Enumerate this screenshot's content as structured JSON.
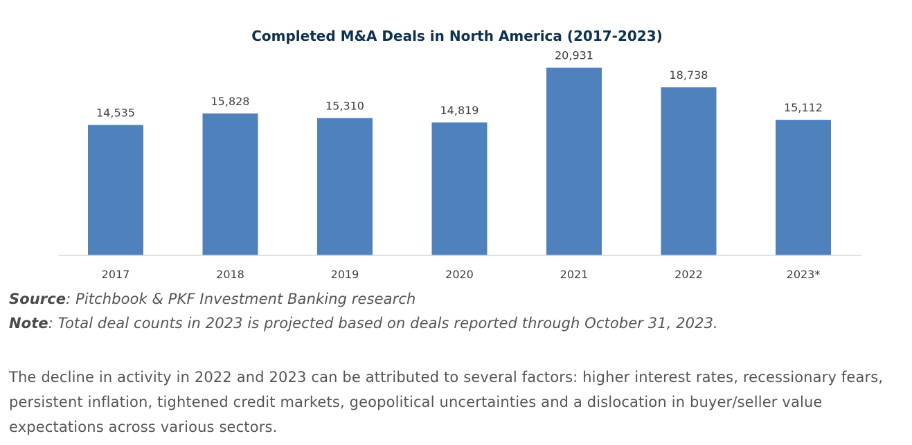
{
  "chart_data": {
    "type": "bar",
    "title": "Completed M&A Deals in North America (2017-2023)",
    "xlabel": "",
    "ylabel": "",
    "categories": [
      "2017",
      "2018",
      "2019",
      "2020",
      "2021",
      "2022",
      "2023*"
    ],
    "values": [
      14535,
      15828,
      15310,
      14819,
      20931,
      18738,
      15112
    ],
    "value_labels": [
      "14,535",
      "15,828",
      "15,310",
      "14,819",
      "20,931",
      "18,738",
      "15,112"
    ],
    "ylim": [
      0,
      25000
    ],
    "grid": false,
    "legend": "none",
    "bar_color": "#4f81bd"
  },
  "source": {
    "label": "Source",
    "text": ": Pitchbook & PKF Investment Banking research"
  },
  "note": {
    "label": "Note",
    "text": ": Total deal counts in 2023 is projected based on deals reported through October 31, 2023."
  },
  "body": {
    "paragraph": "The decline in activity in 2022 and 2023 can be attributed to several factors: higher interest rates, recessionary fears, persistent inflation, tightened credit markets, geopolitical uncertainties and a dislocation in buyer/seller value expectations across various sectors."
  }
}
